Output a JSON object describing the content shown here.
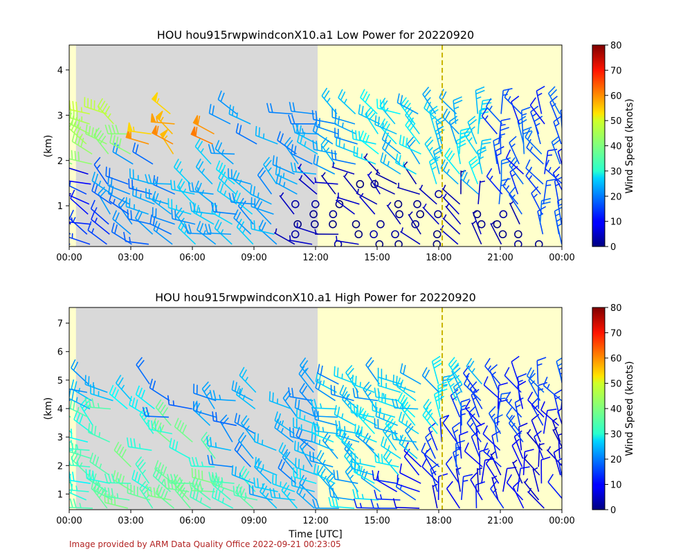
{
  "chart_data": [
    {
      "type": "wind-barb-time-height",
      "title": "HOU hou915rwpwindconX10.a1 Low Power for 20220920",
      "xlabel": "",
      "ylabel": "(km)",
      "x_ticks": [
        "00:00",
        "03:00",
        "06:00",
        "09:00",
        "12:00",
        "15:00",
        "18:00",
        "21:00",
        "00:00"
      ],
      "xlim_hours": [
        0,
        24
      ],
      "y_ticks": [
        1,
        2,
        3,
        4
      ],
      "ylim_km": [
        0.1,
        4.55
      ],
      "night_shading_hours": [
        0.33,
        12.1
      ],
      "vertical_dashed_line_hour": 18.17,
      "colorbar": {
        "label": "Wind Speed (knots)",
        "ticks": [
          0,
          10,
          20,
          30,
          40,
          50,
          60,
          70,
          80
        ],
        "range": [
          0,
          80
        ],
        "colormap": "jet"
      },
      "barb_columns_hours": [
        0,
        1,
        2,
        3,
        4,
        5,
        6,
        7,
        8,
        9,
        10,
        11,
        12,
        13,
        14,
        15,
        16,
        17,
        18,
        19,
        20,
        21,
        22,
        23,
        24
      ],
      "representative_winds": [
        {
          "hour": 0.5,
          "height_km": 0.6,
          "speed_kt": 12
        },
        {
          "hour": 2.2,
          "height_km": 3.1,
          "speed_kt": 42
        },
        {
          "hour": 4.6,
          "height_km": 3.1,
          "speed_kt": 57
        },
        {
          "hour": 3.5,
          "height_km": 0.8,
          "speed_kt": 20
        },
        {
          "hour": 6.5,
          "height_km": 0.8,
          "speed_kt": 24
        },
        {
          "hour": 11.0,
          "height_km": 2.9,
          "speed_kt": 22
        },
        {
          "hour": 15.0,
          "height_km": 0.5,
          "speed_kt": 3
        },
        {
          "hour": 18.5,
          "height_km": 2.6,
          "speed_kt": 26
        },
        {
          "hour": 23.0,
          "height_km": 2.5,
          "speed_kt": 15
        }
      ]
    },
    {
      "type": "wind-barb-time-height",
      "title": "HOU hou915rwpwindconX10.a1 High Power for 20220920",
      "xlabel": "Time [UTC]",
      "ylabel": "(km)",
      "x_ticks": [
        "00:00",
        "03:00",
        "06:00",
        "09:00",
        "12:00",
        "15:00",
        "18:00",
        "21:00",
        "00:00"
      ],
      "xlim_hours": [
        0,
        24
      ],
      "y_ticks": [
        1,
        2,
        3,
        4,
        5,
        6,
        7
      ],
      "ylim_km": [
        0.45,
        7.55
      ],
      "night_shading_hours": [
        0.33,
        12.1
      ],
      "vertical_dashed_line_hour": 18.17,
      "colorbar": {
        "label": "Wind Speed (knots)",
        "ticks": [
          0,
          10,
          20,
          30,
          40,
          50,
          60,
          70,
          80
        ],
        "range": [
          0,
          80
        ],
        "colormap": "jet"
      },
      "barb_columns_hours": [
        0,
        1,
        2,
        3,
        4,
        5,
        6,
        7,
        8,
        9,
        10,
        11,
        12,
        13,
        14,
        15,
        16,
        17,
        18,
        19,
        20,
        21,
        22,
        23,
        24
      ],
      "representative_winds": [
        {
          "hour": 1.0,
          "height_km": 5.0,
          "speed_kt": 22
        },
        {
          "hour": 2.5,
          "height_km": 3.0,
          "speed_kt": 33
        },
        {
          "hour": 4.5,
          "height_km": 2.9,
          "speed_kt": 36
        },
        {
          "hour": 7.0,
          "height_km": 3.2,
          "speed_kt": 21
        },
        {
          "hour": 11.0,
          "height_km": 3.3,
          "speed_kt": 23
        },
        {
          "hour": 15.5,
          "height_km": 3.0,
          "speed_kt": 25
        },
        {
          "hour": 20.0,
          "height_km": 2.6,
          "speed_kt": 14
        },
        {
          "hour": 22.5,
          "height_km": 2.2,
          "speed_kt": 9
        }
      ]
    }
  ],
  "credit_text": "Image provided by ARM Data Quality Office 2022-09-21 00:23:05",
  "colors": {
    "night": "#d9d9d9",
    "day": "#ffffcc",
    "dashed_line": "#c8b400",
    "credit": "#b22222"
  }
}
